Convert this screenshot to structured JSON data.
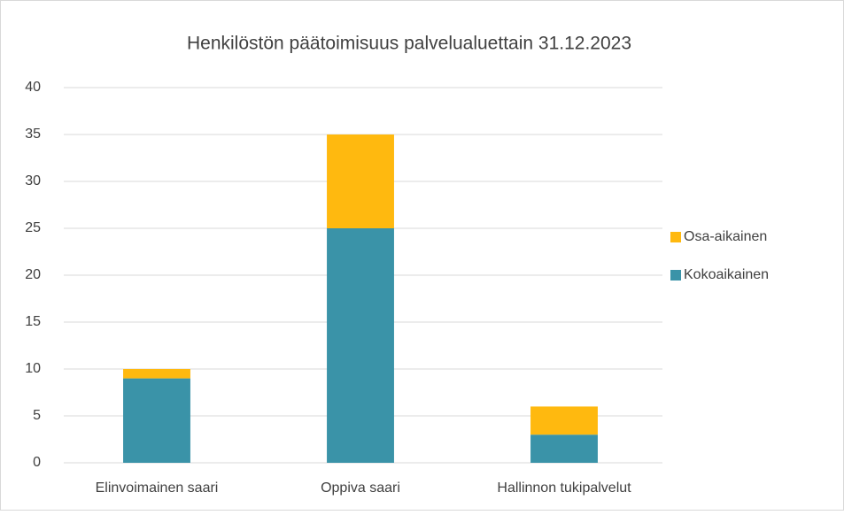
{
  "chart_data": {
    "type": "stacked_bar",
    "title": "Henkilöstön päätoimisuus palvelualuettain 31.12.2023",
    "categories": [
      "Elinvoimainen saari",
      "Oppiva saari",
      "Hallinnon tukipalvelut"
    ],
    "series": [
      {
        "name": "Kokoaikainen",
        "color": "#3a93a8",
        "values": [
          9,
          25,
          3
        ]
      },
      {
        "name": "Osa-aikainen",
        "color": "#ffb90f",
        "values": [
          1,
          10,
          3
        ]
      }
    ],
    "ylim": [
      0,
      40
    ],
    "yticks": [
      0,
      5,
      10,
      15,
      20,
      25,
      30,
      35,
      40
    ],
    "grid": true,
    "legend": "right"
  }
}
